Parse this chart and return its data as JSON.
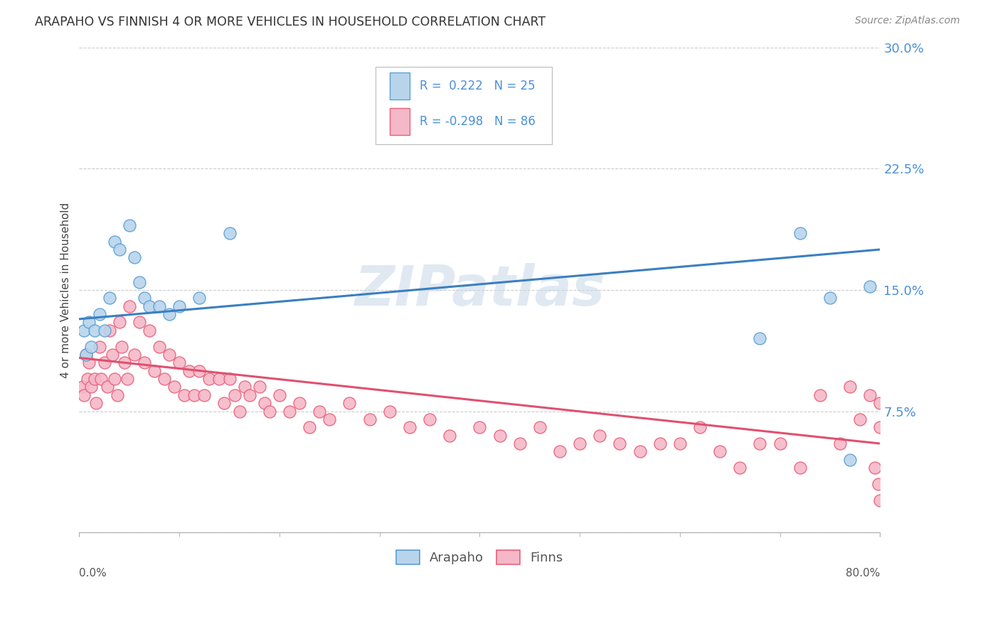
{
  "title": "ARAPAHO VS FINNISH 4 OR MORE VEHICLES IN HOUSEHOLD CORRELATION CHART",
  "source": "Source: ZipAtlas.com",
  "ylabel": "4 or more Vehicles in Household",
  "watermark": "ZIPatlas",
  "legend_label1": "Arapaho",
  "legend_label2": "Finns",
  "r1": 0.222,
  "n1": 25,
  "r2": -0.298,
  "n2": 86,
  "color_arapaho_fill": "#b8d4eb",
  "color_arapaho_edge": "#5a9fd4",
  "color_finns_fill": "#f5b8c8",
  "color_finns_edge": "#e8607a",
  "color_line_arapaho": "#3a7fc1",
  "color_line_finns": "#e05070",
  "color_text_blue": "#4a90d9",
  "background_color": "#ffffff",
  "grid_color": "#cccccc",
  "xmin": 0.0,
  "xmax": 0.8,
  "ymin": 0.0,
  "ymax": 0.3,
  "yticks": [
    0.0,
    0.075,
    0.15,
    0.225,
    0.3
  ],
  "ytick_labels": [
    "",
    "7.5%",
    "15.0%",
    "22.5%",
    "30.0%"
  ],
  "arapaho_x": [
    0.005,
    0.007,
    0.01,
    0.012,
    0.015,
    0.02,
    0.025,
    0.03,
    0.035,
    0.04,
    0.05,
    0.055,
    0.06,
    0.065,
    0.07,
    0.08,
    0.09,
    0.1,
    0.12,
    0.15,
    0.68,
    0.72,
    0.75,
    0.77,
    0.79
  ],
  "arapaho_y": [
    0.125,
    0.11,
    0.13,
    0.115,
    0.125,
    0.135,
    0.125,
    0.145,
    0.18,
    0.175,
    0.19,
    0.17,
    0.155,
    0.145,
    0.14,
    0.14,
    0.135,
    0.14,
    0.145,
    0.185,
    0.12,
    0.185,
    0.145,
    0.045,
    0.152
  ],
  "finns_x": [
    0.003,
    0.005,
    0.007,
    0.008,
    0.01,
    0.012,
    0.015,
    0.017,
    0.02,
    0.022,
    0.025,
    0.028,
    0.03,
    0.033,
    0.035,
    0.038,
    0.04,
    0.042,
    0.045,
    0.048,
    0.05,
    0.055,
    0.06,
    0.065,
    0.07,
    0.075,
    0.08,
    0.085,
    0.09,
    0.095,
    0.1,
    0.105,
    0.11,
    0.115,
    0.12,
    0.125,
    0.13,
    0.14,
    0.145,
    0.15,
    0.155,
    0.16,
    0.165,
    0.17,
    0.18,
    0.185,
    0.19,
    0.2,
    0.21,
    0.22,
    0.23,
    0.24,
    0.25,
    0.27,
    0.29,
    0.31,
    0.33,
    0.35,
    0.37,
    0.4,
    0.42,
    0.44,
    0.46,
    0.48,
    0.5,
    0.52,
    0.54,
    0.56,
    0.58,
    0.6,
    0.62,
    0.64,
    0.66,
    0.68,
    0.7,
    0.72,
    0.74,
    0.76,
    0.77,
    0.78,
    0.79,
    0.795,
    0.798,
    0.8,
    0.8,
    0.8
  ],
  "finns_y": [
    0.09,
    0.085,
    0.11,
    0.095,
    0.105,
    0.09,
    0.095,
    0.08,
    0.115,
    0.095,
    0.105,
    0.09,
    0.125,
    0.11,
    0.095,
    0.085,
    0.13,
    0.115,
    0.105,
    0.095,
    0.14,
    0.11,
    0.13,
    0.105,
    0.125,
    0.1,
    0.115,
    0.095,
    0.11,
    0.09,
    0.105,
    0.085,
    0.1,
    0.085,
    0.1,
    0.085,
    0.095,
    0.095,
    0.08,
    0.095,
    0.085,
    0.075,
    0.09,
    0.085,
    0.09,
    0.08,
    0.075,
    0.085,
    0.075,
    0.08,
    0.065,
    0.075,
    0.07,
    0.08,
    0.07,
    0.075,
    0.065,
    0.07,
    0.06,
    0.065,
    0.06,
    0.055,
    0.065,
    0.05,
    0.055,
    0.06,
    0.055,
    0.05,
    0.055,
    0.055,
    0.065,
    0.05,
    0.04,
    0.055,
    0.055,
    0.04,
    0.085,
    0.055,
    0.09,
    0.07,
    0.085,
    0.04,
    0.03,
    0.02,
    0.065,
    0.08
  ]
}
